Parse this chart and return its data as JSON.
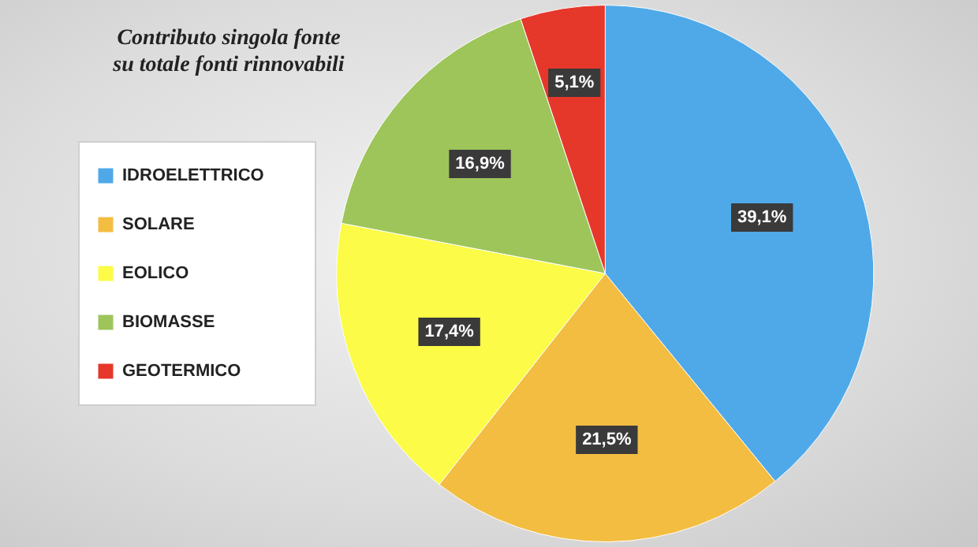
{
  "chart_data": {
    "type": "pie",
    "title": "Contributo singola fonte\nsu totale fonti rinnovabili",
    "categories": [
      "IDROELETTRICO",
      "SOLARE",
      "EOLICO",
      "BIOMASSE",
      "GEOTERMICO"
    ],
    "values": [
      39.1,
      21.5,
      17.4,
      16.9,
      5.1
    ],
    "colors": [
      "#4fa9e8",
      "#f3bd42",
      "#fbfb48",
      "#9dc55a",
      "#e6372b"
    ],
    "value_labels": [
      "39,1%",
      "21,5%",
      "17,4%",
      "16,9%",
      "5,1%"
    ],
    "legend": "left"
  }
}
